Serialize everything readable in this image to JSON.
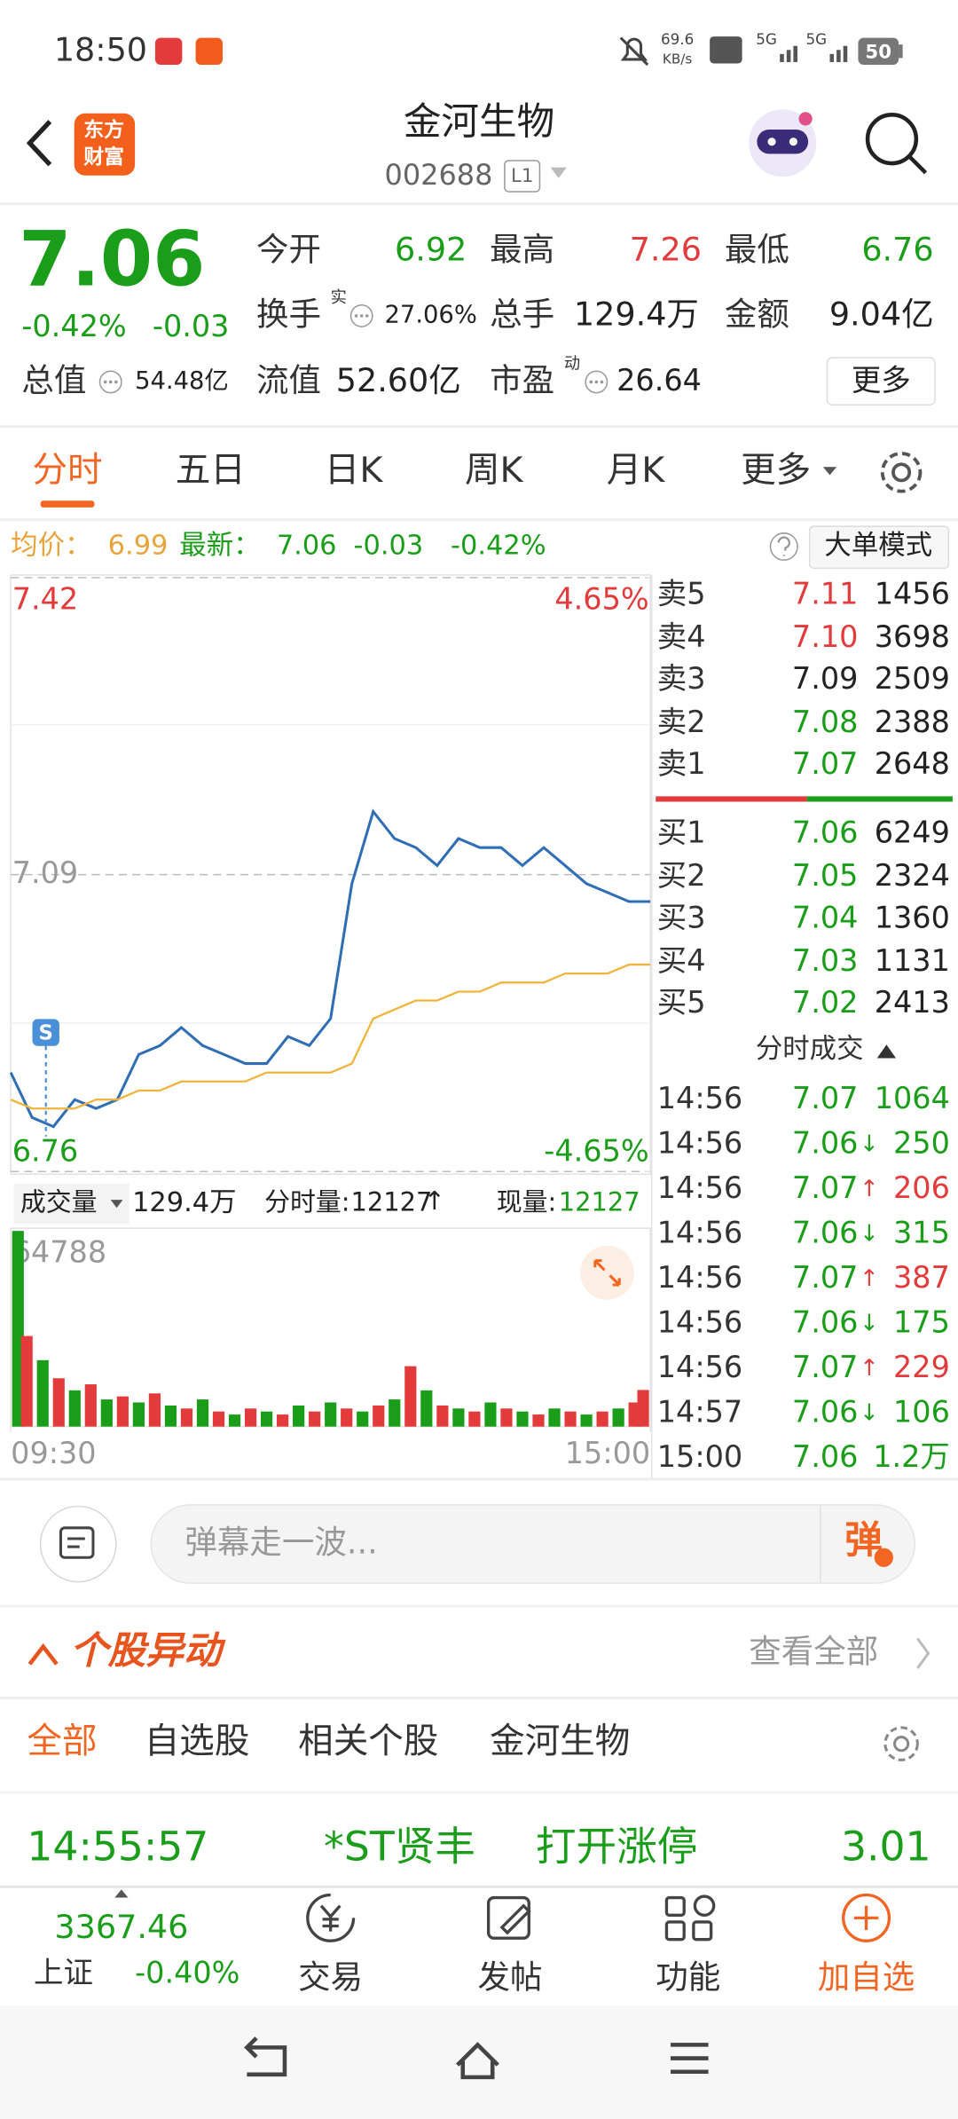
{
  "status_bar": {
    "time": "18:50",
    "net_speed": "69.6",
    "net_unit": "KB/s",
    "signal1": "5G",
    "signal2": "5G",
    "battery": "50"
  },
  "header": {
    "logo": [
      "东方",
      "财富"
    ],
    "name": "金河生物",
    "code": "002688",
    "level": "L1"
  },
  "quote": {
    "price": "7.06",
    "change_pct": "-0.42%",
    "change": "-0.03",
    "fields": [
      {
        "label": "今开",
        "value": "6.92",
        "color": "#1a9e1a"
      },
      {
        "label": "最高",
        "value": "7.26",
        "color": "#e33b3b"
      },
      {
        "label": "最低",
        "value": "6.76",
        "color": "#1a9e1a"
      },
      {
        "label": "换手",
        "sup": "实",
        "value": "27.06%"
      },
      {
        "label": "总手",
        "value": "129.4万"
      },
      {
        "label": "金额",
        "value": "9.04亿"
      },
      {
        "label": "总值",
        "value": "54.48亿"
      },
      {
        "label": "流值",
        "value": "52.60亿"
      },
      {
        "label": "市盈",
        "sup": "动",
        "value": "26.64"
      }
    ],
    "more": "更多"
  },
  "tabs": [
    "分时",
    "五日",
    "日K",
    "周K",
    "月K",
    "更多"
  ],
  "info_bar": {
    "avg_label": "均价：",
    "avg": "6.99",
    "latest_label": "最新：",
    "latest": "7.06",
    "change": "-0.03",
    "change_pct": "-0.42%",
    "mode": "大单模式"
  },
  "chart_data": [
    {
      "type": "line",
      "xlim": [
        0,
        240
      ],
      "ylim": [
        6.76,
        7.42
      ],
      "yticks": [
        6.76,
        7.09,
        7.42
      ],
      "ytick_colors": [
        "#1a9e1a",
        "#999999",
        "#e33b3b"
      ],
      "grid": true,
      "y2lim": [
        -4.65,
        4.65
      ],
      "y2ticks": [
        {
          "value": -4.65,
          "label": "-4.65%"
        },
        {
          "value": 4.65,
          "label": "4.65%"
        }
      ],
      "y2tick_colors": [
        "#1a9e1a",
        "#e33b3b"
      ],
      "x": [
        0,
        8,
        16,
        24,
        32,
        40,
        48,
        56,
        64,
        72,
        80,
        88,
        96,
        104,
        112,
        120,
        128,
        136,
        144,
        152,
        160,
        168,
        176,
        184,
        192,
        200,
        208,
        216,
        224,
        232,
        240
      ],
      "series": [
        {
          "color": "#2f6db5",
          "values": [
            6.87,
            6.82,
            6.81,
            6.84,
            6.83,
            6.84,
            6.89,
            6.9,
            6.92,
            6.9,
            6.89,
            6.88,
            6.88,
            6.91,
            6.9,
            6.93,
            7.08,
            7.16,
            7.13,
            7.12,
            7.1,
            7.13,
            7.12,
            7.12,
            7.1,
            7.12,
            7.1,
            7.08,
            7.07,
            7.06,
            7.06
          ]
        },
        {
          "color": "#f0b43c",
          "values": [
            6.84,
            6.83,
            6.83,
            6.83,
            6.84,
            6.84,
            6.85,
            6.85,
            6.86,
            6.86,
            6.86,
            6.86,
            6.87,
            6.87,
            6.87,
            6.87,
            6.88,
            6.93,
            6.94,
            6.95,
            6.95,
            6.96,
            6.96,
            6.97,
            6.97,
            6.97,
            6.98,
            6.98,
            6.98,
            6.99,
            6.99
          ]
        }
      ],
      "annotations": [
        {
          "text": "S"
        }
      ]
    },
    {
      "type": "bar",
      "xlim": [
        0,
        240
      ],
      "ylim": [
        0,
        64788
      ],
      "yticks": [
        64788
      ],
      "ytick_colors": [
        "#999999"
      ],
      "grid": false,
      "xticks": [
        {
          "value": 0,
          "label": "09:30"
        },
        {
          "value": 240,
          "label": "15:00"
        }
      ],
      "x": [
        0,
        6,
        12,
        18,
        24,
        30,
        36,
        42,
        48,
        54,
        60,
        66,
        72,
        78,
        84,
        90,
        96,
        102,
        108,
        114,
        120,
        126,
        132,
        138,
        144,
        150,
        156,
        162,
        168,
        174,
        180,
        186,
        192,
        198,
        204,
        210,
        216,
        222,
        228,
        234,
        240
      ],
      "series": [
        {
          "color": "#1a9e1a",
          "values": [
            64788,
            null,
            22000,
            null,
            12000,
            null,
            9000,
            null,
            8000,
            null,
            7000,
            null,
            9000,
            null,
            4000,
            null,
            5000,
            null,
            7000,
            null,
            8000,
            null,
            5000,
            null,
            9000,
            null,
            12000,
            null,
            6000,
            null,
            8000,
            null,
            5000,
            null,
            6000,
            null,
            4000,
            null,
            6000,
            null,
            null
          ]
        },
        {
          "color": "#e33b3b",
          "values": [
            null,
            30000,
            null,
            16000,
            null,
            14000,
            null,
            10000,
            null,
            11000,
            null,
            6000,
            null,
            5000,
            null,
            6000,
            null,
            4000,
            null,
            5000,
            null,
            6000,
            null,
            7000,
            null,
            20000,
            null,
            7000,
            null,
            5000,
            null,
            6000,
            null,
            4000,
            null,
            5000,
            null,
            5000,
            null,
            8000,
            12127
          ]
        }
      ]
    }
  ],
  "volume_header": {
    "label": "成交量",
    "total": "129.4万",
    "period_label": "分时量:",
    "period_value": "12127",
    "period_arrow": "↑",
    "current_label": "现量:",
    "current_value": "12127"
  },
  "order_book": {
    "asks": [
      {
        "label": "卖5",
        "price": "7.11",
        "volume": "1456",
        "color": "#e33b3b"
      },
      {
        "label": "卖4",
        "price": "7.10",
        "volume": "3698",
        "color": "#e33b3b"
      },
      {
        "label": "卖3",
        "price": "7.09",
        "volume": "2509",
        "color": "#222222"
      },
      {
        "label": "卖2",
        "price": "7.08",
        "volume": "2388",
        "color": "#1a9e1a"
      },
      {
        "label": "卖1",
        "price": "7.07",
        "volume": "2648",
        "color": "#1a9e1a"
      }
    ],
    "bids": [
      {
        "label": "买1",
        "price": "7.06",
        "volume": "6249",
        "color": "#1a9e1a"
      },
      {
        "label": "买2",
        "price": "7.05",
        "volume": "2324",
        "color": "#1a9e1a"
      },
      {
        "label": "买3",
        "price": "7.04",
        "volume": "1360",
        "color": "#1a9e1a"
      },
      {
        "label": "买4",
        "price": "7.03",
        "volume": "1131",
        "color": "#1a9e1a"
      },
      {
        "label": "买5",
        "price": "7.02",
        "volume": "2413",
        "color": "#1a9e1a"
      }
    ]
  },
  "trades": {
    "title": "分时成交",
    "rows": [
      {
        "time": "14:56",
        "price": "7.07",
        "volume": "1064",
        "color": "#1a9e1a"
      },
      {
        "time": "14:56",
        "price": "7.06",
        "arrow": "↓",
        "volume": "250",
        "color": "#1a9e1a"
      },
      {
        "time": "14:56",
        "price": "7.07",
        "arrow": "↑",
        "volume": "206",
        "color": "#e33b3b"
      },
      {
        "time": "14:56",
        "price": "7.06",
        "arrow": "↓",
        "volume": "315",
        "color": "#1a9e1a"
      },
      {
        "time": "14:56",
        "price": "7.07",
        "arrow": "↑",
        "volume": "387",
        "color": "#e33b3b"
      },
      {
        "time": "14:56",
        "price": "7.06",
        "arrow": "↓",
        "volume": "175",
        "color": "#1a9e1a"
      },
      {
        "time": "14:56",
        "price": "7.07",
        "arrow": "↑",
        "volume": "229",
        "color": "#e33b3b"
      },
      {
        "time": "14:57",
        "price": "7.06",
        "arrow": "↓",
        "volume": "106",
        "color": "#1a9e1a"
      },
      {
        "time": "15:00",
        "price": "7.06",
        "volume": "1.2万",
        "color": "#1a9e1a"
      }
    ]
  },
  "danmaku": {
    "placeholder": "弹幕走一波...",
    "button": "弹"
  },
  "alerts": {
    "title": "个股异动",
    "view_all": "查看全部",
    "filters": [
      "全部",
      "自选股",
      "相关个股",
      "金河生物"
    ],
    "rows": [
      {
        "time": "14:55:57",
        "name": "*ST贤丰",
        "event": "打开涨停",
        "price": "3.01"
      }
    ]
  },
  "bottom_nav": {
    "index": {
      "value": "3367.46",
      "name": "上证",
      "change": "-0.40%"
    },
    "items": [
      "交易",
      "发帖",
      "功能",
      "加自选"
    ]
  }
}
